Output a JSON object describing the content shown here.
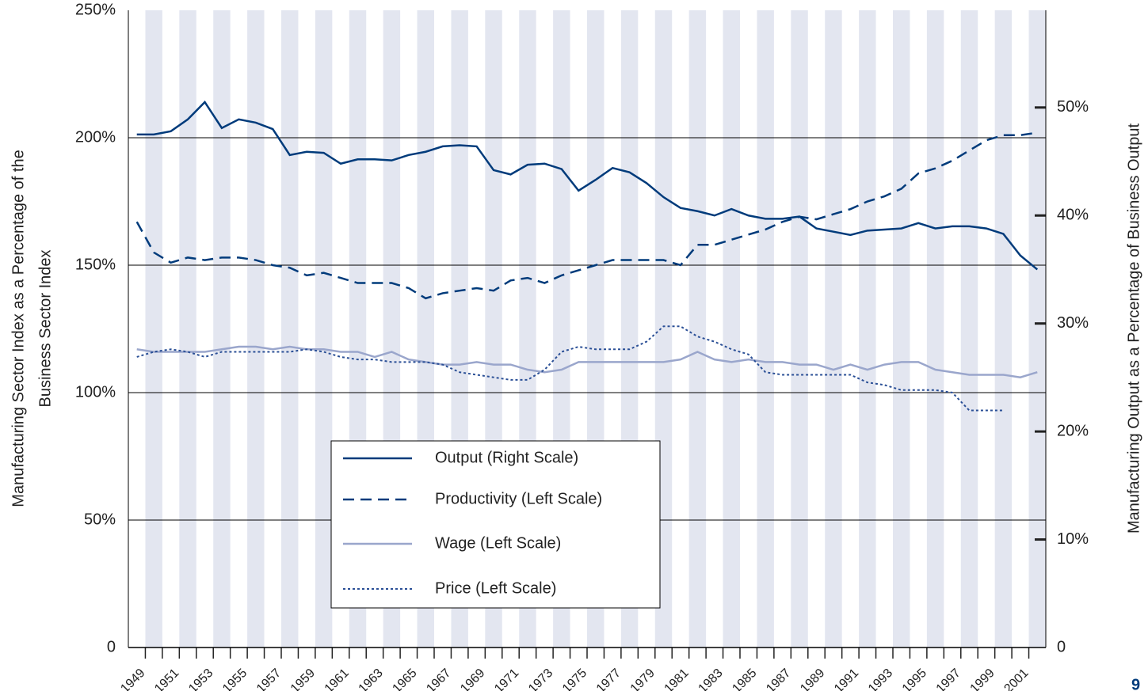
{
  "chart_data": {
    "type": "line",
    "y_label_lines": [
      "Manufacturing Sector Index as a Percentage of the",
      "Business Sector Index"
    ],
    "y2_label": "Manufacturing Output as a Percentage of Business Output",
    "page_number": "9",
    "x": [
      1949,
      1950,
      1951,
      1952,
      1953,
      1954,
      1955,
      1956,
      1957,
      1958,
      1959,
      1960,
      1961,
      1962,
      1963,
      1964,
      1965,
      1966,
      1967,
      1968,
      1969,
      1970,
      1971,
      1972,
      1973,
      1974,
      1975,
      1976,
      1977,
      1978,
      1979,
      1980,
      1981,
      1982,
      1983,
      1984,
      1985,
      1986,
      1987,
      1988,
      1989,
      1990,
      1991,
      1992,
      1993,
      1994,
      1995,
      1996,
      1997,
      1998,
      1999,
      2000,
      2001,
      2002
    ],
    "xlim": [
      1948.5,
      2002.5
    ],
    "xticks": [
      1949,
      1951,
      1953,
      1955,
      1957,
      1959,
      1961,
      1963,
      1965,
      1967,
      1969,
      1971,
      1973,
      1975,
      1977,
      1979,
      1981,
      1983,
      1985,
      1987,
      1989,
      1991,
      1993,
      1995,
      1997,
      1999,
      2001
    ],
    "ylim": [
      0,
      250
    ],
    "yticks": [
      0,
      {
        "value": 50,
        "label": "50%"
      },
      {
        "value": 100,
        "label": "100%"
      },
      {
        "value": 150,
        "label": "150%"
      },
      {
        "value": 200,
        "label": "200%"
      },
      {
        "value": 250,
        "label": "250%"
      }
    ],
    "y2lim": [
      0,
      59
    ],
    "y2ticks": [
      0,
      {
        "value": 10,
        "label": "10%"
      },
      {
        "value": 20,
        "label": "20%"
      },
      {
        "value": 30,
        "label": "30%"
      },
      {
        "value": 40,
        "label": "40%"
      },
      {
        "value": 50,
        "label": "50%"
      }
    ],
    "grid": true,
    "series": [
      {
        "name": "Output (Right Scale)",
        "color": "#003b7b",
        "style": "solid",
        "axis": "y2",
        "values": [
          47.5,
          47.5,
          47.8,
          48.9,
          50.5,
          48.1,
          48.9,
          48.6,
          48.0,
          45.6,
          45.9,
          45.8,
          44.8,
          45.2,
          45.2,
          45.1,
          45.6,
          45.9,
          46.4,
          46.5,
          46.4,
          44.2,
          43.8,
          44.7,
          44.8,
          44.3,
          42.3,
          43.3,
          44.4,
          44.0,
          43.0,
          41.7,
          40.7,
          40.4,
          40.0,
          40.6,
          40.0,
          39.7,
          39.7,
          39.9,
          38.8,
          38.5,
          38.2,
          38.6,
          38.7,
          38.8,
          39.3,
          38.8,
          39.0,
          39.0,
          38.8,
          38.3,
          36.3,
          35.0
        ]
      },
      {
        "name": "Productivity (Left Scale)",
        "color": "#003b7b",
        "style": "dashed",
        "values": [
          167,
          155,
          151,
          153,
          152,
          153,
          153,
          152,
          150,
          149,
          146,
          147,
          145,
          143,
          143,
          143,
          141,
          137,
          139,
          140,
          141,
          140,
          144,
          145,
          143,
          146,
          148,
          150,
          152,
          152,
          152,
          152,
          150,
          158,
          158,
          160,
          162,
          164,
          167,
          169,
          168,
          170,
          172,
          175,
          177,
          180,
          186,
          188,
          191,
          195,
          199,
          201,
          201,
          202
        ]
      },
      {
        "name": "Wage (Left Scale)",
        "color": "#9aa6cc",
        "style": "solid",
        "values": [
          117,
          116,
          116,
          116,
          116,
          117,
          118,
          118,
          117,
          118,
          117,
          117,
          116,
          116,
          114,
          116,
          113,
          112,
          111,
          111,
          112,
          111,
          111,
          109,
          108,
          109,
          112,
          112,
          112,
          112,
          112,
          112,
          113,
          116,
          113,
          112,
          113,
          112,
          112,
          111,
          111,
          109,
          111,
          109,
          111,
          112,
          112,
          109,
          108,
          107,
          107,
          107,
          106,
          108
        ]
      },
      {
        "name": "Price (Left Scale)",
        "color": "#2a4f96",
        "style": "dotted",
        "values": [
          114,
          116,
          117,
          116,
          114,
          116,
          116,
          116,
          116,
          116,
          117,
          116,
          114,
          113,
          113,
          112,
          112,
          112,
          111,
          108,
          107,
          106,
          105,
          105,
          109,
          116,
          118,
          117,
          117,
          117,
          120,
          126,
          126,
          122,
          120,
          117,
          115,
          108,
          107,
          107,
          107,
          107,
          107,
          104,
          103,
          101,
          101,
          101,
          100,
          93,
          93,
          93,
          null,
          null
        ]
      }
    ]
  }
}
